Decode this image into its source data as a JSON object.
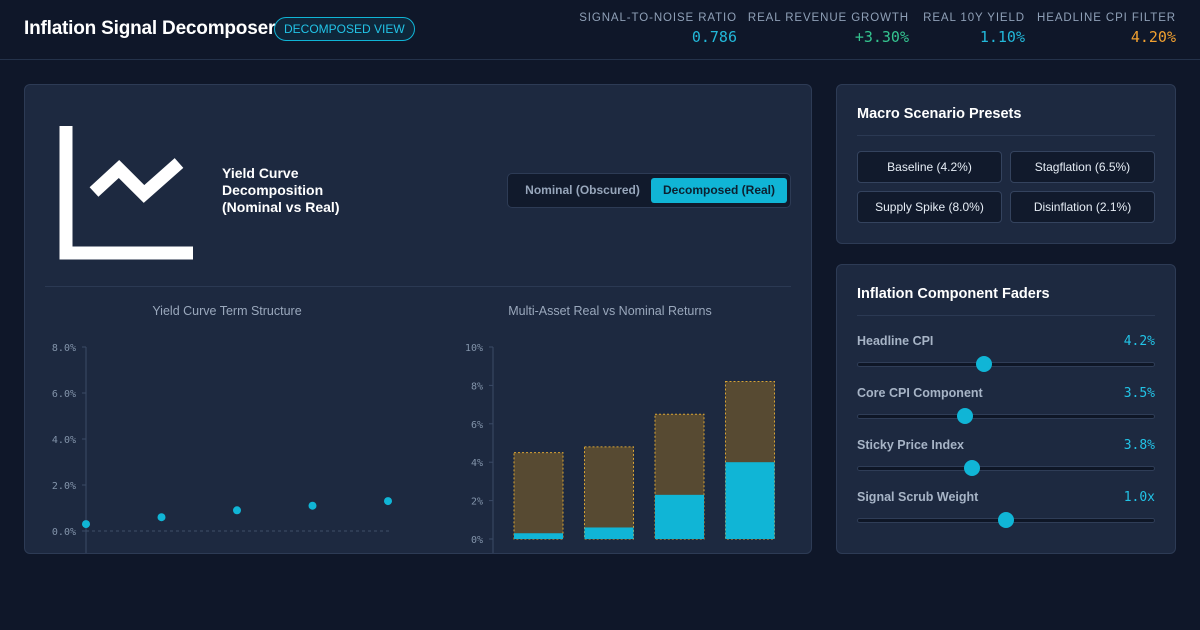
{
  "header": {
    "title": "Inflation Signal Decomposer",
    "badge": "DECOMPOSED VIEW",
    "metrics": [
      {
        "label": "SIGNAL-TO-NOISE RATIO",
        "value": "0.786",
        "color": "#22b8d9"
      },
      {
        "label": "REAL REVENUE GROWTH",
        "value": "+3.30%",
        "color": "#34c38f"
      },
      {
        "label": "REAL 10Y YIELD",
        "value": "1.10%",
        "color": "#22b8d9"
      },
      {
        "label": "HEADLINE CPI FILTER",
        "value": "4.20%",
        "color": "#f0a030"
      }
    ]
  },
  "hero": {
    "title": "Yield Curve Decomposition (Nominal vs Real)",
    "icon": "line-chart-icon"
  },
  "toggle": {
    "nominal_label": "Nominal (Obscured)",
    "decomposed_label": "Decomposed (Real)",
    "selected": "decomposed"
  },
  "chart_data": [
    {
      "type": "scatter",
      "title": "Yield Curve Term Structure",
      "y_ticks": [
        "8.0%",
        "6.0%",
        "4.0%",
        "2.0%",
        "0.0%"
      ],
      "ylim": [
        0,
        8
      ],
      "series": [
        {
          "values": [
            0.3,
            0.6,
            0.9,
            1.1,
            1.3
          ],
          "color": "#10b5d6"
        }
      ]
    },
    {
      "type": "bar",
      "title": "Multi-Asset Real vs Nominal Returns",
      "y_ticks": [
        "10%",
        "8%",
        "6%",
        "4%",
        "2%",
        "0%"
      ],
      "ylim": [
        0,
        10
      ],
      "series": [
        {
          "values": [
            4.5,
            4.8,
            6.5,
            8.2
          ],
          "color": "#574a32"
        },
        {
          "values": [
            0.3,
            0.6,
            2.3,
            4.0
          ],
          "color": "#10b5d6"
        }
      ]
    }
  ],
  "presets": {
    "title": "Macro Scenario Presets",
    "buttons": [
      "Baseline (4.2%)",
      "Stagflation (6.5%)",
      "Supply Spike (8.0%)",
      "Disinflation (2.1%)"
    ]
  },
  "faders": {
    "title": "Inflation Component Faders",
    "items": [
      {
        "label": "Headline CPI",
        "value": "4.2%",
        "level": 0.427
      },
      {
        "label": "Core CPI Component",
        "value": "3.5%",
        "level": 0.36
      },
      {
        "label": "Sticky Price Index",
        "value": "3.8%",
        "level": 0.385
      },
      {
        "label": "Signal Scrub Weight",
        "value": "1.0x",
        "level": 0.5
      }
    ]
  }
}
